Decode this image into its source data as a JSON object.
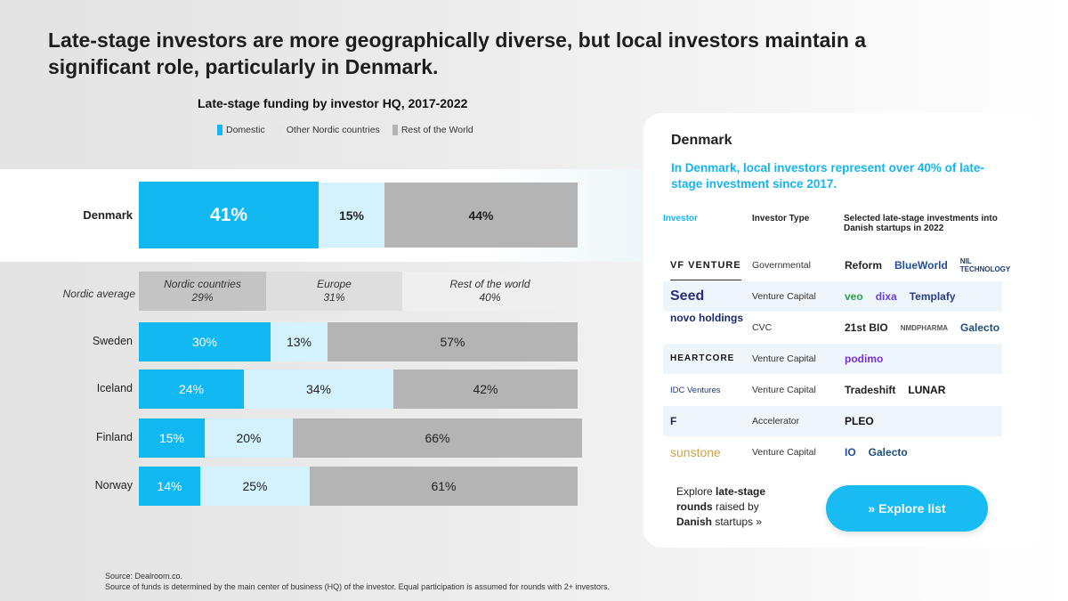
{
  "headline": "Late-stage investors are more geographically diverse, but local investors maintain a significant role, particularly in Denmark.",
  "colors": {
    "domestic": "#12b8f2",
    "other_nordic": "#d4f2fd",
    "rest_of_world": "#b4b4b4",
    "accent": "#14b5ef"
  },
  "chart_data": {
    "type": "bar",
    "stacked": true,
    "orientation": "horizontal",
    "title": "Late-stage funding by investor HQ, 2017-2022",
    "legend": [
      "Domestic",
      "Other Nordic countries",
      "Rest of the World"
    ],
    "categories": [
      "Denmark",
      "Sweden",
      "Iceland",
      "Finland",
      "Norway"
    ],
    "series": [
      {
        "name": "Domestic",
        "values": [
          41,
          30,
          24,
          15,
          14
        ]
      },
      {
        "name": "Other Nordic countries",
        "values": [
          15,
          13,
          34,
          20,
          25
        ]
      },
      {
        "name": "Rest of the World",
        "values": [
          44,
          57,
          42,
          66,
          61
        ]
      }
    ],
    "labels": [
      [
        "41%",
        "15%",
        "44%"
      ],
      [
        "30%",
        "13%",
        "57%"
      ],
      [
        "24%",
        "34%",
        "42%"
      ],
      [
        "15%",
        "20%",
        "66%"
      ],
      [
        "14%",
        "25%",
        "61%"
      ]
    ],
    "nordic_average": {
      "label": "Nordic average",
      "segments": [
        {
          "name": "Nordic countries",
          "value": 29,
          "label": "29%"
        },
        {
          "name": "Europe",
          "value": 31,
          "label": "31%"
        },
        {
          "name": "Rest of the world",
          "value": 40,
          "label": "40%"
        }
      ]
    },
    "xlim": [
      0,
      100
    ]
  },
  "source": {
    "line1": "Source: Dealroom.co.",
    "line2": "Source of funds is determined by the main center of business (HQ) of the investor. Equal participation is assumed for rounds with 2+ investors."
  },
  "card": {
    "title": "Denmark",
    "subtitle": "In Denmark, local investors represent over 40% of late-stage investment since 2017.",
    "columns": {
      "investor": "Investor",
      "type": "Investor Type",
      "investments": "Selected late-stage investments into Danish startups in 2022"
    },
    "rows": [
      {
        "investor": "VF VENTURE",
        "type": "Governmental",
        "picks": [
          "Reform",
          "BlueWorld",
          "NIL TECHNOLOGY"
        ]
      },
      {
        "investor": "Seed",
        "type": "Venture Capital",
        "picks": [
          "veo",
          "dixa",
          "Templafy"
        ]
      },
      {
        "investor": "novo holdings",
        "type": "CVC",
        "picks": [
          "21st BIO",
          "NMDPHARMA",
          "Galecto"
        ]
      },
      {
        "investor": "HEARTCORE",
        "type": "Venture Capital",
        "picks": [
          "podimo"
        ]
      },
      {
        "investor": "IDC Ventures",
        "type": "Venture Capital",
        "picks": [
          "Tradeshift",
          "LUNAR"
        ]
      },
      {
        "investor": "F",
        "type": "Accelerator",
        "picks": [
          "PLEO"
        ]
      },
      {
        "investor": "sunstone",
        "type": "Venture Capital",
        "picks": [
          "IO",
          "Galecto"
        ]
      }
    ],
    "explore": {
      "pre": "Explore ",
      "bold1": "late-stage rounds",
      "mid": " raised by ",
      "bold2": "Danish",
      "post": " startups »"
    },
    "button": "» Explore list"
  }
}
